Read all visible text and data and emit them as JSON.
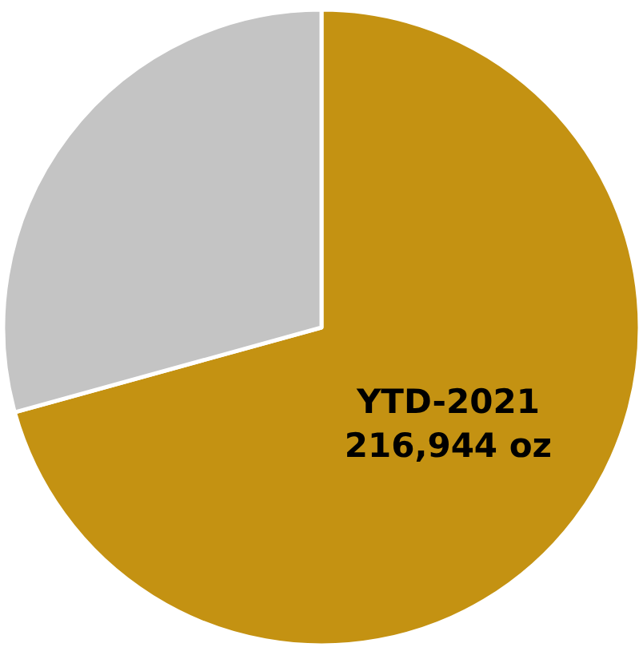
{
  "chart_data": {
    "type": "pie",
    "categories": [
      "YTD-2021",
      null
    ],
    "values": [
      216944,
      89900
    ],
    "value_labels": [
      "216,944 oz",
      null
    ],
    "colors": [
      "#c49212",
      "#c4c4c4"
    ],
    "legend": false
  }
}
